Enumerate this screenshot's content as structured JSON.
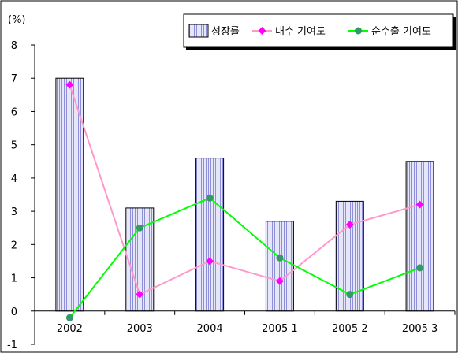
{
  "chart_data": {
    "type": "bar",
    "unit_label": "(%)",
    "categories": [
      "2002",
      "2003",
      "2004",
      "2005 1",
      "2005 2",
      "2005 3"
    ],
    "ylim": [
      -1,
      8
    ],
    "yticks": [
      "-1",
      "0",
      "1",
      "2",
      "3",
      "4",
      "5",
      "6",
      "7",
      "8"
    ],
    "grid": false,
    "legend_position": "top-right",
    "series": [
      {
        "name": "성장률",
        "kind": "bar",
        "values": [
          7.0,
          3.1,
          4.6,
          2.7,
          3.3,
          4.5
        ],
        "color": "#c9c9f2",
        "edge": "#000000"
      },
      {
        "name": "내수 기여도",
        "kind": "line",
        "marker": "diamond",
        "values": [
          6.8,
          0.5,
          1.5,
          0.9,
          2.6,
          3.2
        ],
        "color": "#ff00ff",
        "line_color": "#ff99cc"
      },
      {
        "name": "순수출 기여도",
        "kind": "line",
        "marker": "circle",
        "values": [
          -0.2,
          2.5,
          3.4,
          1.6,
          0.5,
          1.3
        ],
        "color": "#339966",
        "line_color": "#00ff00"
      }
    ]
  }
}
